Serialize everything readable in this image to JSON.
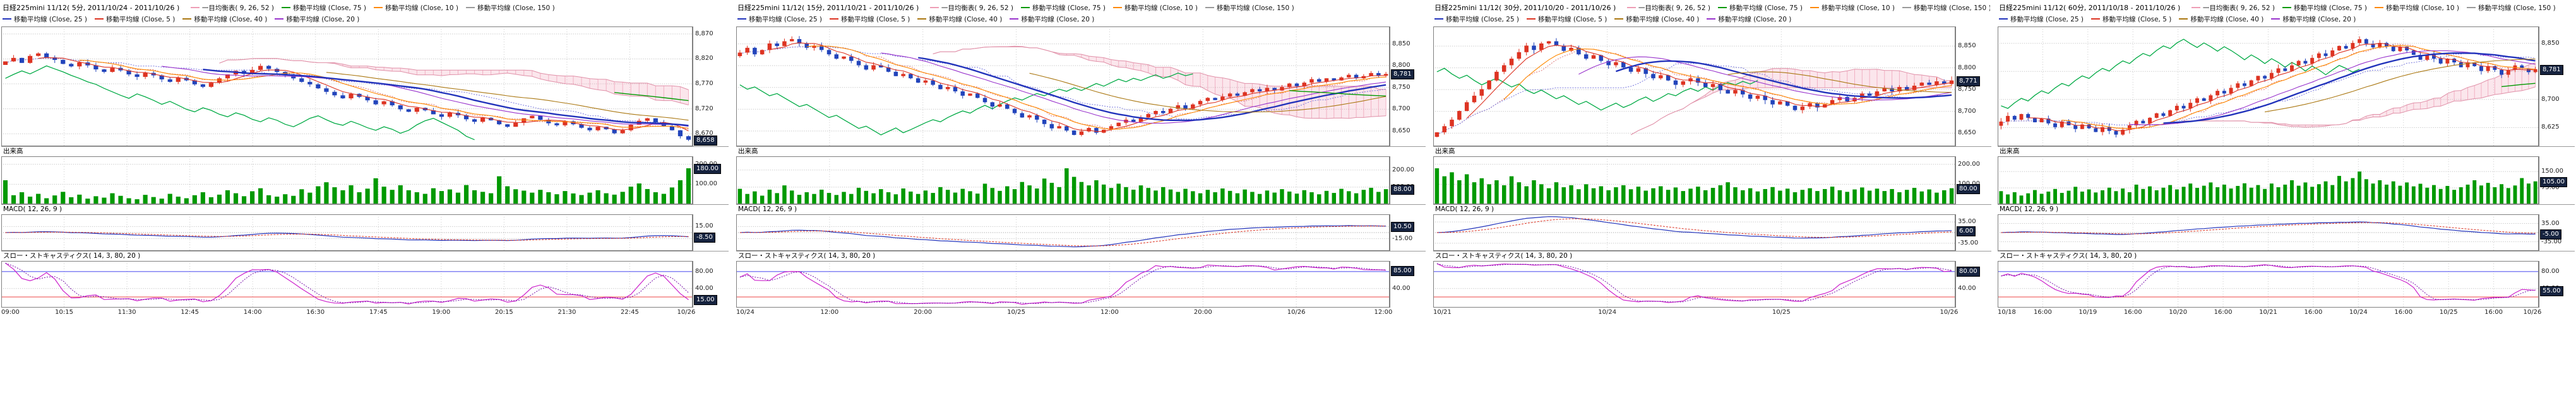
{
  "colors": {
    "up": "#dd3322",
    "down": "#2244bb",
    "volume": "#009900",
    "ma5": "#dd3322",
    "ma10": "#ff8800",
    "ma20": "#9933cc",
    "ma25": "#2233bb",
    "ma40": "#aa7711",
    "ma75": "#009900",
    "ma150": "#999999",
    "tenkan": "#dd7777",
    "kijun": "#7777dd",
    "chikou": "#00aa44",
    "cloud": "#ee9db5",
    "macd": "#2233bb",
    "macd_signal": "#dd3322",
    "stoch_k": "#cc22cc",
    "stoch_d": "#7711aa",
    "band_upper": "#4444ee",
    "band_lower": "#ee4444",
    "grid": "#bbbbbb"
  },
  "panels": [
    {
      "title": "日経225mini 11/12( 5分, 2011/10/24 - 2011/10/26 )",
      "legend_row1": [
        {
          "label": "一目均衡表( 9, 26, 52 )",
          "color": "#ee9db5"
        },
        {
          "label": "移動平均線 (Close, 75 )",
          "color": "#009900"
        },
        {
          "label": "移動平均線 (Close, 10 )",
          "color": "#ff8800"
        },
        {
          "label": "移動平均線 (Close, 150 )",
          "color": "#999999"
        }
      ],
      "legend_row2": [
        {
          "label": "移動平均線 (Close, 25 )",
          "color": "#2233bb"
        },
        {
          "label": "移動平均線 (Close, 5 )",
          "color": "#dd3322"
        },
        {
          "label": "移動平均線 (Close, 40 )",
          "color": "#aa7711"
        },
        {
          "label": "移動平均線 (Close, 20 )",
          "color": "#9933cc"
        }
      ],
      "volume_label": "出来高",
      "macd_label": "MACD( 12, 26, 9 )",
      "stoch_label": "スロー・ストキャスティクス( 14, 3, 80, 20 )",
      "price_ticks": [
        "8,870",
        "8,820",
        "8,770",
        "8,720",
        "8,670"
      ],
      "volume_ticks": [
        "200.00",
        "100.00"
      ],
      "macd_ticks": [
        "15.00",
        "-15.00"
      ],
      "stoch_ticks": [
        "80.00",
        "40.00"
      ],
      "badges": {
        "price": "8,658",
        "volume": "180.00",
        "macd": "-8.50",
        "stoch": "15.00"
      }
    },
    {
      "title": "日経225mini 11/12( 15分, 2011/10/21 - 2011/10/26 )",
      "legend_row1": [
        {
          "label": "一目均衡表( 9, 26, 52 )",
          "color": "#ee9db5"
        },
        {
          "label": "移動平均線 (Close, 75 )",
          "color": "#009900"
        },
        {
          "label": "移動平均線 (Close, 10 )",
          "color": "#ff8800"
        },
        {
          "label": "移動平均線 (Close, 150 )",
          "color": "#999999"
        }
      ],
      "legend_row2": [
        {
          "label": "移動平均線 (Close, 25 )",
          "color": "#2233bb"
        },
        {
          "label": "移動平均線 (Close, 5 )",
          "color": "#dd3322"
        },
        {
          "label": "移動平均線 (Close, 40 )",
          "color": "#aa7711"
        },
        {
          "label": "移動平均線 (Close, 20 )",
          "color": "#9933cc"
        }
      ],
      "volume_label": "出来高",
      "macd_label": "MACD( 12, 26, 9 )",
      "stoch_label": "スロー・ストキャスティクス( 14, 3, 80, 20 )",
      "price_ticks": [
        "8,850",
        "8,800",
        "8,750",
        "8,700",
        "8,650"
      ],
      "volume_ticks": [
        "200.00",
        "100.00"
      ],
      "macd_ticks": [
        "15.00",
        "-15.00"
      ],
      "stoch_ticks": [
        "80.00",
        "40.00"
      ],
      "badges": {
        "price": "8,781",
        "volume": "88.00",
        "macd": "10.50",
        "stoch": "85.00"
      }
    },
    {
      "title": "日経225mini 11/12( 30分, 2011/10/20 - 2011/10/26 )",
      "legend_row1": [
        {
          "label": "一目均衡表( 9, 26, 52 )",
          "color": "#ee9db5"
        },
        {
          "label": "移動平均線 (Close, 75 )",
          "color": "#009900"
        },
        {
          "label": "移動平均線 (Close, 10 )",
          "color": "#ff8800"
        },
        {
          "label": "移動平均線 (Close, 150 )",
          "color": "#999999"
        }
      ],
      "legend_row2": [
        {
          "label": "移動平均線 (Close, 25 )",
          "color": "#2233bb"
        },
        {
          "label": "移動平均線 (Close, 5 )",
          "color": "#dd3322"
        },
        {
          "label": "移動平均線 (Close, 40 )",
          "color": "#aa7711"
        },
        {
          "label": "移動平均線 (Close, 20 )",
          "color": "#9933cc"
        }
      ],
      "volume_label": "出来高",
      "macd_label": "MACD( 12, 26, 9 )",
      "stoch_label": "スロー・ストキャスティクス( 14, 3, 80, 20 )",
      "price_ticks": [
        "8,850",
        "8,800",
        "8,750",
        "8,700",
        "8,650"
      ],
      "volume_ticks": [
        "200.00",
        "100.00"
      ],
      "macd_ticks": [
        "35.00",
        "-35.00"
      ],
      "stoch_ticks": [
        "80.00",
        "40.00"
      ],
      "badges": {
        "price": "8,771",
        "volume": "80.00",
        "macd": "6.00",
        "stoch": "80.00"
      }
    },
    {
      "title": "日経225mini 11/12( 60分, 2011/10/18 - 2011/10/26 )",
      "legend_row1": [
        {
          "label": "一目均衡表( 9, 26, 52 )",
          "color": "#ee9db5"
        },
        {
          "label": "移動平均線 (Close, 75 )",
          "color": "#009900"
        },
        {
          "label": "移動平均線 (Close, 10 )",
          "color": "#ff8800"
        },
        {
          "label": "移動平均線 (Close, 150 )",
          "color": "#999999"
        }
      ],
      "legend_row2": [
        {
          "label": "移動平均線 (Close, 25 )",
          "color": "#2233bb"
        },
        {
          "label": "移動平均線 (Close, 5 )",
          "color": "#dd3322"
        },
        {
          "label": "移動平均線 (Close, 40 )",
          "color": "#aa7711"
        },
        {
          "label": "移動平均線 (Close, 20 )",
          "color": "#9933cc"
        }
      ],
      "volume_label": "出来高",
      "macd_label": "MACD( 12, 26, 9 )",
      "stoch_label": "スロー・ストキャスティクス( 14, 3, 80, 20 )",
      "price_ticks": [
        "8,850",
        "8,775",
        "8,700",
        "8,625"
      ],
      "volume_ticks": [
        "150.00",
        "75.00"
      ],
      "macd_ticks": [
        "35.00",
        "-35.00"
      ],
      "stoch_ticks": [
        "80.00",
        "40.00"
      ],
      "badges": {
        "price": "8,781",
        "volume": "105.00",
        "macd": "-5.00",
        "stoch": "55.00"
      }
    }
  ],
  "chart_data": [
    {
      "type": "candlestick",
      "title": "日経225mini 11/12( 5分, 2011/10/24 - 2011/10/26 )",
      "x_ticks": [
        "09:00",
        "10:15",
        "11:30",
        "12:45",
        "14:00",
        "16:30",
        "17:45",
        "19:00",
        "20:15",
        "21:30",
        "22:45",
        "10/26"
      ],
      "ylim": [
        8645,
        8885
      ],
      "price_gridlines": [
        8870,
        8820,
        8770,
        8720,
        8670
      ],
      "close": [
        8815,
        8822,
        8812,
        8826,
        8831,
        8823,
        8818,
        8810,
        8805,
        8813,
        8807,
        8799,
        8794,
        8802,
        8797,
        8789,
        8784,
        8792,
        8787,
        8779,
        8774,
        8782,
        8777,
        8769,
        8764,
        8772,
        8781,
        8789,
        8796,
        8790,
        8798,
        8806,
        8800,
        8794,
        8787,
        8781,
        8774,
        8769,
        8761,
        8754,
        8747,
        8741,
        8750,
        8744,
        8737,
        8729,
        8735,
        8727,
        8719,
        8714,
        8722,
        8717,
        8709,
        8704,
        8712,
        8707,
        8699,
        8694,
        8702,
        8697,
        8689,
        8684,
        8692,
        8701,
        8706,
        8698,
        8691,
        8687,
        8695,
        8689,
        8682,
        8677,
        8684,
        8679,
        8671,
        8677,
        8688,
        8696,
        8701,
        8693,
        8685,
        8677,
        8665,
        8658
      ],
      "volume": [
        120,
        45,
        60,
        38,
        52,
        30,
        44,
        62,
        35,
        48,
        28,
        40,
        33,
        55,
        42,
        30,
        25,
        47,
        36,
        28,
        52,
        38,
        30,
        45,
        60,
        35,
        48,
        70,
        55,
        40,
        65,
        80,
        45,
        38,
        50,
        42,
        75,
        58,
        90,
        110,
        85,
        70,
        95,
        60,
        78,
        130,
        88,
        72,
        95,
        70,
        60,
        52,
        80,
        66,
        74,
        58,
        96,
        70,
        62,
        55,
        140,
        90,
        75,
        68,
        58,
        72,
        60,
        50,
        66,
        54,
        46,
        58,
        70,
        55,
        48,
        62,
        88,
        104,
        76,
        60,
        52,
        84,
        120,
        180
      ],
      "volume_axis": {
        "max": 240,
        "gridlines": [
          200,
          100
        ]
      },
      "macd_axis": {
        "lim": [
          -45,
          45
        ],
        "gridlines": [
          15,
          -15
        ]
      },
      "stoch_axis": {
        "gridlines": [
          80,
          40
        ],
        "bands": [
          80,
          20
        ]
      },
      "indicators": {
        "ichimoku": [
          9,
          26,
          52
        ],
        "ma": [
          5,
          10,
          20,
          25,
          40,
          75,
          150
        ],
        "macd": [
          12,
          26,
          9
        ],
        "stochastics": [
          14,
          3,
          80,
          20
        ]
      }
    },
    {
      "type": "candlestick",
      "title": "日経225mini 11/12( 15分, 2011/10/21 - 2011/10/26 )",
      "x_ticks": [
        "10/24",
        "12:00",
        "20:00",
        "10/25",
        "12:00",
        "20:00",
        "10/26",
        "12:00"
      ],
      "ylim": [
        8615,
        8890
      ],
      "price_gridlines": [
        8850,
        8800,
        8750,
        8700,
        8650
      ],
      "close": [
        8830,
        8841,
        8826,
        8836,
        8851,
        8845,
        8856,
        8861,
        8851,
        8841,
        8846,
        8836,
        8826,
        8816,
        8821,
        8811,
        8801,
        8791,
        8801,
        8796,
        8786,
        8776,
        8781,
        8771,
        8761,
        8766,
        8756,
        8746,
        8751,
        8741,
        8731,
        8736,
        8726,
        8716,
        8706,
        8711,
        8701,
        8691,
        8681,
        8686,
        8676,
        8666,
        8656,
        8661,
        8651,
        8641,
        8649,
        8657,
        8646,
        8653,
        8661,
        8669,
        8676,
        8671,
        8681,
        8689,
        8696,
        8691,
        8701,
        8709,
        8701,
        8711,
        8719,
        8726,
        8721,
        8729,
        8736,
        8731,
        8739,
        8746,
        8741,
        8749,
        8743,
        8751,
        8759,
        8753,
        8761,
        8769,
        8763,
        8771,
        8766,
        8773,
        8779,
        8771,
        8776,
        8783,
        8777,
        8781
      ],
      "volume": [
        90,
        60,
        75,
        50,
        85,
        65,
        110,
        80,
        55,
        70,
        60,
        85,
        66,
        54,
        72,
        60,
        96,
        78,
        64,
        88,
        70,
        58,
        92,
        74,
        60,
        80,
        66,
        100,
        84,
        68,
        90,
        76,
        62,
        120,
        95,
        78,
        105,
        88,
        130,
        110,
        92,
        150,
        125,
        100,
        210,
        160,
        130,
        110,
        140,
        115,
        95,
        120,
        100,
        85,
        110,
        95,
        80,
        100,
        86,
        72,
        90,
        76,
        64,
        84,
        70,
        92,
        78,
        64,
        86,
        72,
        60,
        80,
        68,
        88,
        74,
        62,
        82,
        70,
        58,
        78,
        66,
        90,
        76,
        64,
        84,
        96,
        72,
        88
      ],
      "volume_axis": {
        "max": 280,
        "gridlines": [
          200,
          100
        ]
      },
      "macd_axis": {
        "lim": [
          -45,
          45
        ],
        "gridlines": [
          15,
          -15
        ]
      },
      "stoch_axis": {
        "gridlines": [
          80,
          40
        ],
        "bands": [
          80,
          20
        ]
      },
      "indicators": {
        "ichimoku": [
          9,
          26,
          52
        ],
        "ma": [
          5,
          10,
          20,
          25,
          40,
          75,
          150
        ],
        "macd": [
          12,
          26,
          9
        ],
        "stochastics": [
          14,
          3,
          80,
          20
        ]
      }
    },
    {
      "type": "candlestick",
      "title": "日経225mini 11/12( 30分, 2011/10/20 - 2011/10/26 )",
      "x_ticks": [
        "10/21",
        "10/24",
        "10/25",
        "10/26"
      ],
      "ylim": [
        8620,
        8895
      ],
      "price_gridlines": [
        8850,
        8800,
        8750,
        8700,
        8650
      ],
      "close": [
        8652,
        8666,
        8681,
        8701,
        8721,
        8736,
        8751,
        8771,
        8791,
        8806,
        8821,
        8836,
        8851,
        8841,
        8856,
        8861,
        8851,
        8839,
        8846,
        8831,
        8821,
        8829,
        8816,
        8806,
        8813,
        8801,
        8791,
        8799,
        8786,
        8776,
        8783,
        8771,
        8761,
        8769,
        8776,
        8766,
        8756,
        8763,
        8749,
        8741,
        8749,
        8739,
        8729,
        8736,
        8726,
        8716,
        8723,
        8713,
        8703,
        8711,
        8719,
        8709,
        8716,
        8726,
        8733,
        8723,
        8731,
        8741,
        8736,
        8746,
        8753,
        8746,
        8756,
        8749,
        8759,
        8766,
        8761,
        8769,
        8763,
        8771
      ],
      "volume": [
        180,
        140,
        160,
        120,
        150,
        110,
        130,
        100,
        120,
        95,
        140,
        110,
        90,
        120,
        100,
        80,
        110,
        85,
        95,
        75,
        100,
        80,
        90,
        70,
        85,
        95,
        75,
        88,
        68,
        80,
        90,
        72,
        84,
        66,
        78,
        88,
        70,
        82,
        95,
        110,
        85,
        70,
        80,
        64,
        76,
        86,
        68,
        78,
        60,
        72,
        80,
        66,
        76,
        88,
        70,
        62,
        74,
        84,
        68,
        78,
        66,
        76,
        60,
        72,
        82,
        64,
        74,
        58,
        70,
        80
      ],
      "volume_axis": {
        "max": 240,
        "gridlines": [
          200,
          100
        ]
      },
      "macd_axis": {
        "lim": [
          -60,
          60
        ],
        "gridlines": [
          35,
          -35
        ]
      },
      "stoch_axis": {
        "gridlines": [
          80,
          40
        ],
        "bands": [
          80,
          20
        ]
      },
      "indicators": {
        "ichimoku": [
          9,
          26,
          52
        ],
        "ma": [
          5,
          10,
          20,
          25,
          40,
          75,
          150
        ],
        "macd": [
          12,
          26,
          9
        ],
        "stochastics": [
          14,
          3,
          80,
          20
        ]
      }
    },
    {
      "type": "candlestick",
      "title": "日経225mini 11/12( 60分, 2011/10/18 - 2011/10/26 )",
      "x_ticks": [
        "10/18",
        "16:00",
        "10/19",
        "16:00",
        "10/20",
        "16:00",
        "10/21",
        "16:00",
        "10/24",
        "16:00",
        "10/25",
        "16:00",
        "10/26"
      ],
      "ylim": [
        8575,
        8895
      ],
      "price_gridlines": [
        8850,
        8775,
        8700,
        8625
      ],
      "close": [
        8641,
        8656,
        8646,
        8661,
        8651,
        8639,
        8649,
        8636,
        8626,
        8641,
        8631,
        8621,
        8633,
        8623,
        8613,
        8626,
        8616,
        8606,
        8619,
        8631,
        8643,
        8636,
        8651,
        8663,
        8656,
        8671,
        8683,
        8676,
        8691,
        8703,
        8696,
        8711,
        8723,
        8716,
        8731,
        8743,
        8736,
        8751,
        8763,
        8756,
        8771,
        8783,
        8776,
        8791,
        8803,
        8796,
        8811,
        8823,
        8816,
        8831,
        8843,
        8836,
        8851,
        8861,
        8849,
        8839,
        8851,
        8841,
        8829,
        8841,
        8831,
        8819,
        8806,
        8819,
        8809,
        8796,
        8809,
        8799,
        8786,
        8799,
        8789,
        8776,
        8789,
        8779,
        8766,
        8779,
        8791,
        8783,
        8773,
        8781
      ],
      "volume": [
        60,
        45,
        55,
        40,
        50,
        65,
        48,
        58,
        70,
        52,
        62,
        80,
        58,
        68,
        54,
        64,
        76,
        60,
        72,
        55,
        90,
        70,
        82,
        64,
        76,
        88,
        68,
        80,
        95,
        75,
        85,
        100,
        78,
        90,
        72,
        84,
        96,
        76,
        88,
        70,
        95,
        78,
        90,
        110,
        85,
        100,
        80,
        92,
        105,
        88,
        130,
        105,
        120,
        150,
        115,
        95,
        110,
        90,
        105,
        85,
        100,
        82,
        94,
        76,
        88,
        70,
        84,
        66,
        78,
        90,
        110,
        86,
        98,
        78,
        92,
        74,
        86,
        120,
        95,
        105
      ],
      "volume_axis": {
        "max": 220,
        "gridlines": [
          150,
          75
        ]
      },
      "macd_axis": {
        "lim": [
          -70,
          70
        ],
        "gridlines": [
          35,
          -35
        ]
      },
      "stoch_axis": {
        "gridlines": [
          80,
          40
        ],
        "bands": [
          80,
          20
        ]
      },
      "indicators": {
        "ichimoku": [
          9,
          26,
          52
        ],
        "ma": [
          5,
          10,
          20,
          25,
          40,
          75,
          150
        ],
        "macd": [
          12,
          26,
          9
        ],
        "stochastics": [
          14,
          3,
          80,
          20
        ]
      }
    }
  ]
}
